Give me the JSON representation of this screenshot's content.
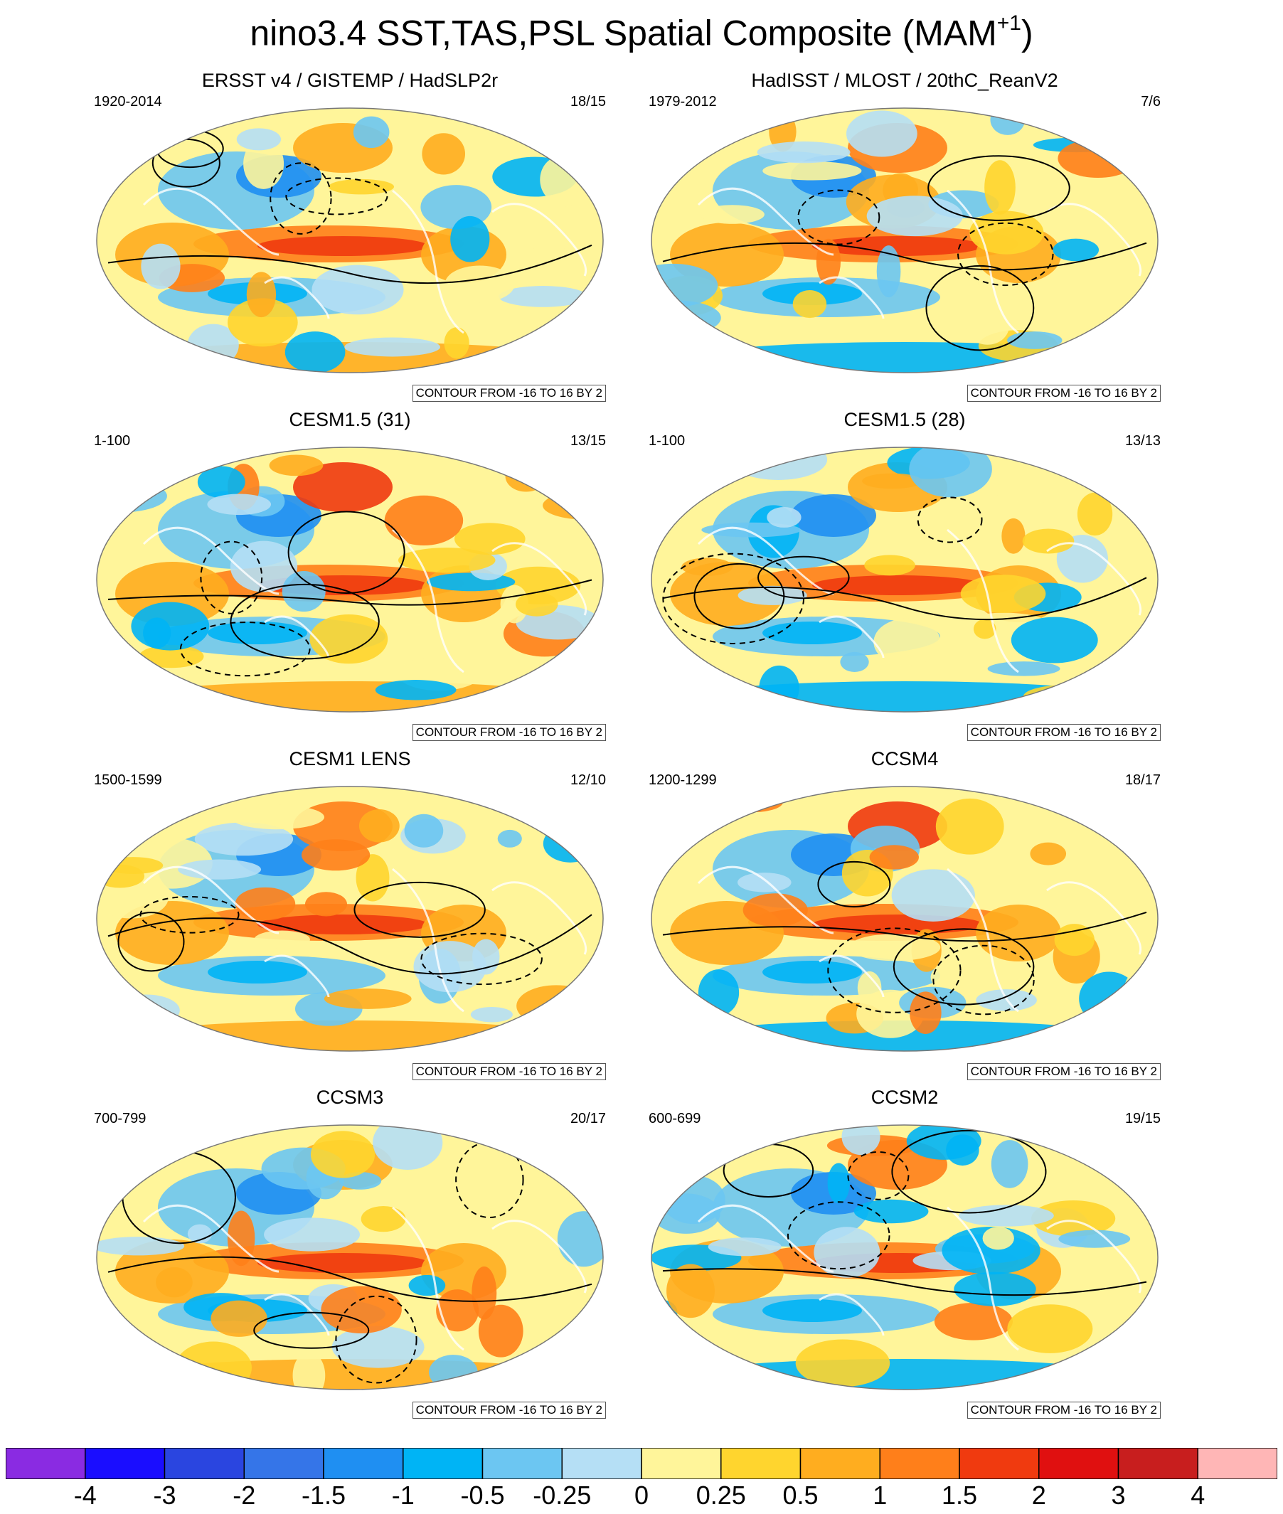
{
  "title": "nino3.4 SST,TAS,PSL Spatial Composite (MAM",
  "title_sup": "+1",
  "title_close": ")",
  "contour_label": "CONTOUR FROM -16 TO 16 BY 2",
  "panels": [
    {
      "title": "ERSST v4 / GISTEMP / HadSLP2r",
      "years": "1920-2014",
      "ratio": "18/15"
    },
    {
      "title": "HadISST / MLOST / 20thC_ReanV2",
      "years": "1979-2012",
      "ratio": "7/6"
    },
    {
      "title": "CESM1.5 (31)",
      "years": "1-100",
      "ratio": "13/15"
    },
    {
      "title": "CESM1.5 (28)",
      "years": "1-100",
      "ratio": "13/13"
    },
    {
      "title": "CESM1 LENS",
      "years": "1500-1599",
      "ratio": "12/10"
    },
    {
      "title": "CCSM4",
      "years": "1200-1299",
      "ratio": "18/17"
    },
    {
      "title": "CCSM3",
      "years": "700-799",
      "ratio": "20/17"
    },
    {
      "title": "CCSM2",
      "years": "600-699",
      "ratio": "19/15"
    }
  ],
  "chart_data": {
    "type": "heatmap",
    "projection": "global map",
    "contour_interval": {
      "from": -16,
      "to": 16,
      "by": 2
    },
    "colorbar": {
      "labels": [
        "-4",
        "-3",
        "-2",
        "-1.5",
        "-1",
        "-0.5",
        "-0.25",
        "0",
        "0.25",
        "0.5",
        "1",
        "1.5",
        "2",
        "3",
        "4"
      ],
      "colors": [
        "#8a2be2",
        "#1a0dff",
        "#2a45e0",
        "#3575e8",
        "#1f8ff2",
        "#00b4f5",
        "#6cc6f2",
        "#b5dff5",
        "#fff59a",
        "#ffd52e",
        "#ffad1f",
        "#ff7f1a",
        "#f03a0f",
        "#e01010",
        "#c81e1e",
        "#ffb6b6"
      ]
    }
  }
}
